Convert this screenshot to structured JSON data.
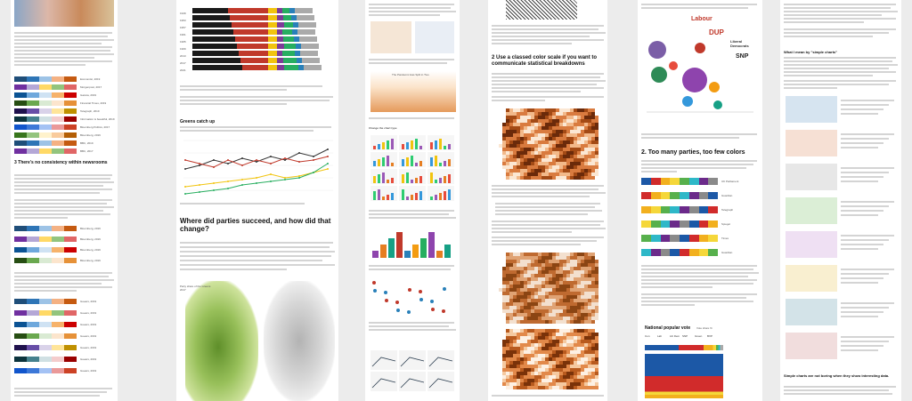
{
  "col1": {
    "heading": "3 There’s no consistency within newsrooms",
    "swatch_labels": [
      "Economist, 2019",
      "Morgenpost, 2017",
      "Gazeta, 2019",
      "Financial Times, 2019",
      "Telegraph, 2019",
      "Information is beautiful, 2019",
      "Bloomberg Politics, 2017",
      "Bloomberg, 2019",
      "BBC, 2019",
      "BBC, 2017"
    ],
    "swatch_labels_b": [
      "Bloomberg, 2019",
      "Bloomberg, 2019",
      "Bloomberg, 2019",
      "Bloomberg, 2019"
    ],
    "swatch_labels_c": [
      "Guears, 2019",
      "Guears, 2019",
      "Guears, 2019",
      "Guears, 2019",
      "Guears, 2019",
      "Guears, 2019",
      "Guears, 2019"
    ]
  },
  "col2": {
    "bar_years": [
      "1949",
      "1953",
      "1957",
      "1961",
      "1965",
      "1969",
      "2013",
      "2017",
      "2021"
    ],
    "chart2_title": "Greens catch up",
    "heading": "Where did parties succeed, and how did that change?",
    "map_label": "Party share of the Greens 2017"
  },
  "col3": {
    "chart_title": "The Pandemic Has Split in Two",
    "sub": "Change the chart type"
  },
  "col4": {
    "heading": "2 Use a classed color scale if you want to communicate statistical breakdowns"
  },
  "col5": {
    "logos": [
      "Labour",
      "DUP",
      "Liberal Democrats",
      "SNP"
    ],
    "heading": "2. Too many parties, too few colors",
    "swatch_labels": [
      "UK Parliament",
      "Guardian",
      "Telegraph",
      "Spiegel",
      "Times",
      "Guardian"
    ],
    "poll_title": "National popular vote",
    "poll_sub": "Vote share %",
    "poll_parties": [
      "Con",
      "Lab",
      "Lib Dem",
      "SNP",
      "Green",
      "BXP"
    ]
  },
  "col6": {
    "heading": "What I mean by \"simple charts\"",
    "heading2": "Simple charts are not boring when they show interesting data."
  },
  "colors": {
    "accent": "#c0392b",
    "green": "#6aa84f",
    "brown": "#8b4513"
  }
}
